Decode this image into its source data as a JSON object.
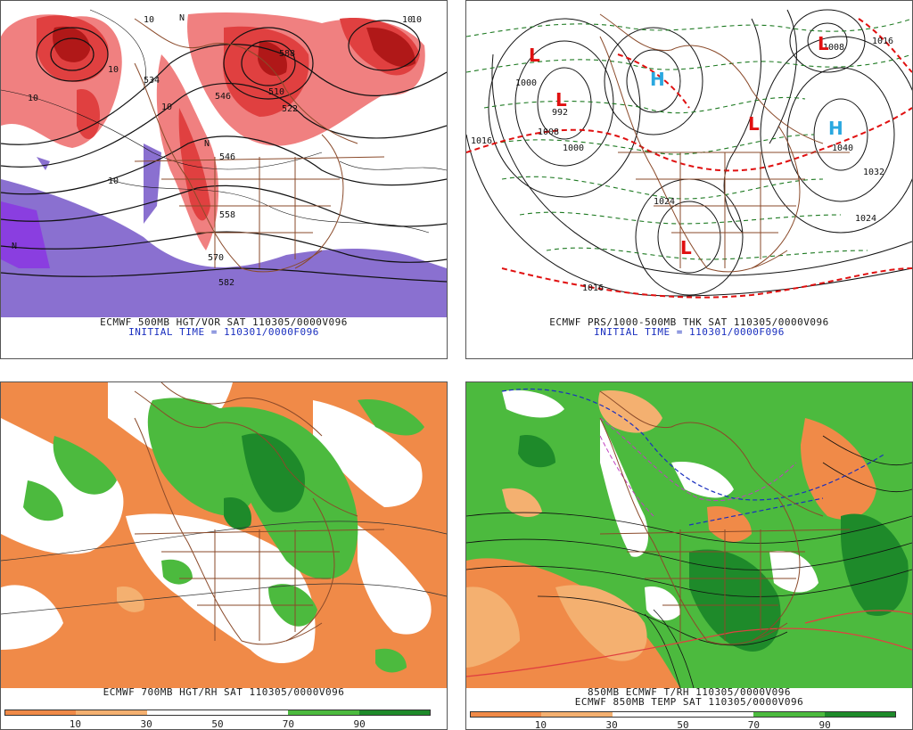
{
  "panels": [
    {
      "id": "tl",
      "caption_line1": "ECMWF 500MB HGT/VOR SAT 110305/0000V096",
      "caption_line2": "INITIAL TIME = 110301/0000F096",
      "contour_labels": [
        "10",
        "10",
        "10",
        "10",
        "N",
        "N",
        "10",
        "588",
        "510",
        "522",
        "546",
        "558",
        "570",
        "582",
        "534",
        "546",
        "N",
        "10",
        "10"
      ]
    },
    {
      "id": "tr",
      "caption_line1": "ECMWF PRS/1000-500MB THK SAT 110305/0000V096",
      "caption_line2": "INITIAL TIME = 110301/0000F096",
      "pressure_labels": [
        "1000",
        "992",
        "1008",
        "1016",
        "1016",
        "1040",
        "1032",
        "1024",
        "1016",
        "1008",
        "1000",
        "1024"
      ],
      "centers": [
        {
          "type": "L",
          "letter": "L"
        },
        {
          "type": "L",
          "letter": "L"
        },
        {
          "type": "H",
          "letter": "H"
        },
        {
          "type": "L",
          "letter": "L"
        },
        {
          "type": "H",
          "letter": "H"
        },
        {
          "type": "L",
          "letter": "L"
        },
        {
          "type": "L",
          "letter": "L"
        }
      ]
    },
    {
      "id": "bl",
      "caption_line1": "ECMWF 700MB HGT/RH SAT 110305/0000V096",
      "colorbar_ticks": [
        "10",
        "30",
        "50",
        "70",
        "90"
      ]
    },
    {
      "id": "br",
      "caption_line1": "850MB ECMWF T/RH 110305/0000V096",
      "caption_line2": "ECMWF 850MB TEMP SAT 110305/0000V096",
      "colorbar_ticks": [
        "10",
        "30",
        "50",
        "70",
        "90"
      ]
    }
  ],
  "colors": {
    "vort_light": "#f08080",
    "vort_mid": "#e04040",
    "vort_dark": "#b01818",
    "vort_neg": "#8a70d0",
    "vort_neg_dark": "#8a3ee0",
    "rh_dry_light": "#f4b070",
    "rh_dry": "#f08a48",
    "rh_moist": "#4cba3e",
    "rh_wet": "#1e8a2a",
    "borders": "#8a4a2a",
    "caption_blue": "#1a2fbf"
  }
}
